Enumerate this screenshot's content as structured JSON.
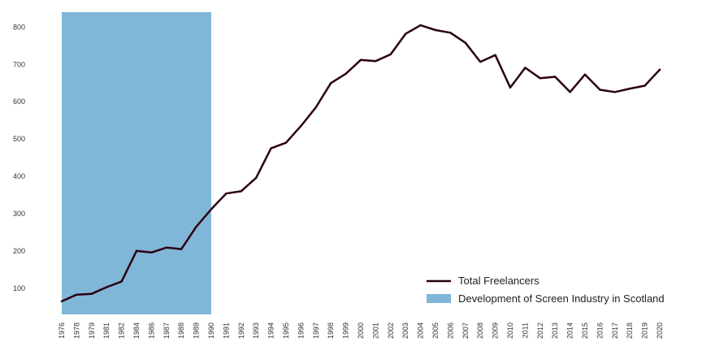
{
  "chart_data": {
    "type": "line",
    "title": "",
    "xlabel": "",
    "ylabel": "",
    "categories": [
      "1976",
      "1978",
      "1979",
      "1981",
      "1982",
      "1984",
      "1986",
      "1987",
      "1988",
      "1989",
      "1990",
      "1991",
      "1992",
      "1993",
      "1994",
      "1995",
      "1996",
      "1997",
      "1998",
      "1999",
      "2000",
      "2001",
      "2002",
      "2003",
      "2004",
      "2005",
      "2006",
      "2007",
      "2008",
      "2009",
      "2010",
      "2011",
      "2012",
      "2013",
      "2014",
      "2015",
      "2016",
      "2017",
      "2018",
      "2019",
      "2020"
    ],
    "series": [
      {
        "name": "Total Freelancers",
        "color": "#2b0010",
        "values": [
          65,
          83,
          85,
          103,
          118,
          200,
          196,
          209,
          205,
          265,
          312,
          354,
          360,
          396,
          475,
          490,
          535,
          585,
          650,
          675,
          712,
          709,
          727,
          782,
          805,
          792,
          785,
          758,
          707,
          725,
          638,
          691,
          663,
          667,
          626,
          673,
          632,
          626,
          635,
          643,
          686
        ]
      }
    ],
    "shaded_region": {
      "name": "Development of Screen Industry in Scotland",
      "color": "#80b7d9",
      "from": "1976",
      "to": "1990"
    },
    "yticks": [
      100,
      200,
      300,
      400,
      500,
      600,
      700,
      800
    ],
    "ylim": [
      30,
      840
    ],
    "grid": false,
    "legend_position": "bottom-right"
  }
}
